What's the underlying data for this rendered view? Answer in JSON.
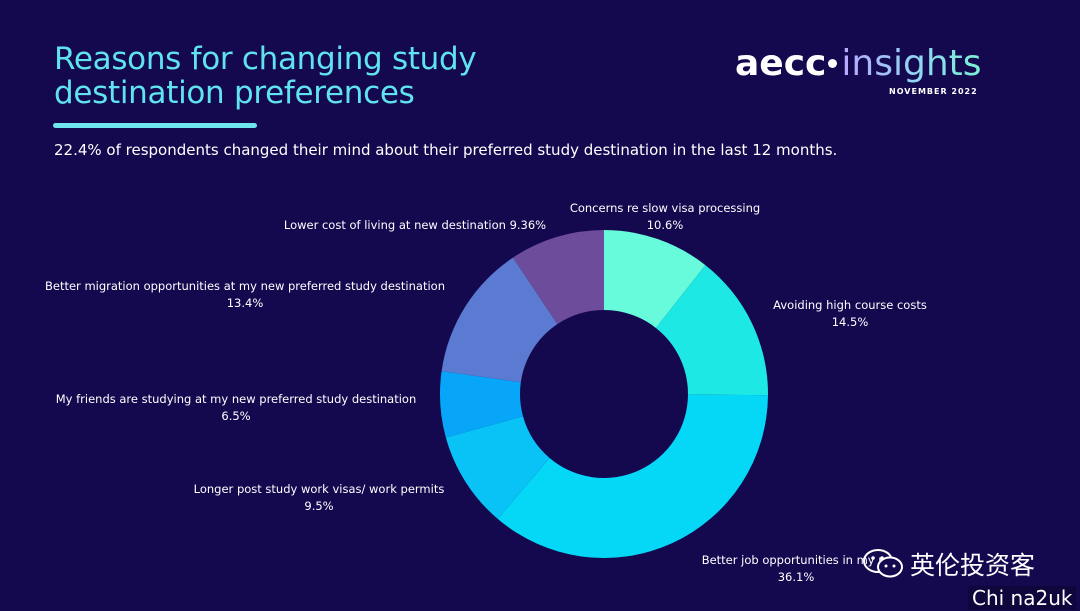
{
  "header": {
    "title_line1": "Reasons for changing study",
    "title_line2": "destination preferences",
    "subtitle": "22.4% of respondents changed their mind about their preferred study destination in the last 12 months."
  },
  "logo": {
    "brand": "aecc",
    "product": "insights",
    "date": "NOVEMBER 2022"
  },
  "chart_data": {
    "type": "pie",
    "variant": "donut",
    "title": "Reasons for changing study destination preferences",
    "slices": [
      {
        "label": "Concerns re slow visa processing",
        "value_text": "10.6%",
        "value": 10.6,
        "color": "#67fbdc"
      },
      {
        "label": "Avoiding high course costs",
        "value_text": "14.5%",
        "value": 14.5,
        "color": "#1ee8e3"
      },
      {
        "label": "Better job opportunities in my preferred destination",
        "value_text": "36.1%",
        "value": 36.1,
        "color": "#05d8f6"
      },
      {
        "label": "Longer post study work visas/ work permits",
        "value_text": "9.5%",
        "value": 9.5,
        "color": "#09c3f7"
      },
      {
        "label": "My friends are studying at my new preferred study destination",
        "value_text": "6.5%",
        "value": 6.5,
        "color": "#08a6f8"
      },
      {
        "label": "Better migration opportunities at my new preferred study destination",
        "value_text": "13.4%",
        "value": 13.4,
        "color": "#5b7ad2"
      },
      {
        "label": "Lower cost of living at new destination",
        "value_text": "9.36%",
        "value": 9.36,
        "color": "#6c4c9b"
      }
    ]
  },
  "labels": [
    {
      "line1": "Concerns re slow visa processing",
      "line2": "10.6%"
    },
    {
      "line1": "Avoiding high course costs",
      "line2": "14.5%"
    },
    {
      "line1": "Better job opportunities in my pr",
      "line2": "36.1%"
    },
    {
      "line1": "Longer post study work visas/ work permits",
      "line2": "9.5%"
    },
    {
      "line1": "My friends are studying at my new preferred study destination",
      "line2": "6.5%"
    },
    {
      "line1": "Better migration opportunities at my new preferred study destination",
      "line2": "13.4%"
    },
    {
      "line1": "Lower cost of living at new destination 9.36%",
      "line2": ""
    }
  ],
  "watermark": {
    "text": "英伦投资客",
    "site": "Chi na2uk"
  }
}
